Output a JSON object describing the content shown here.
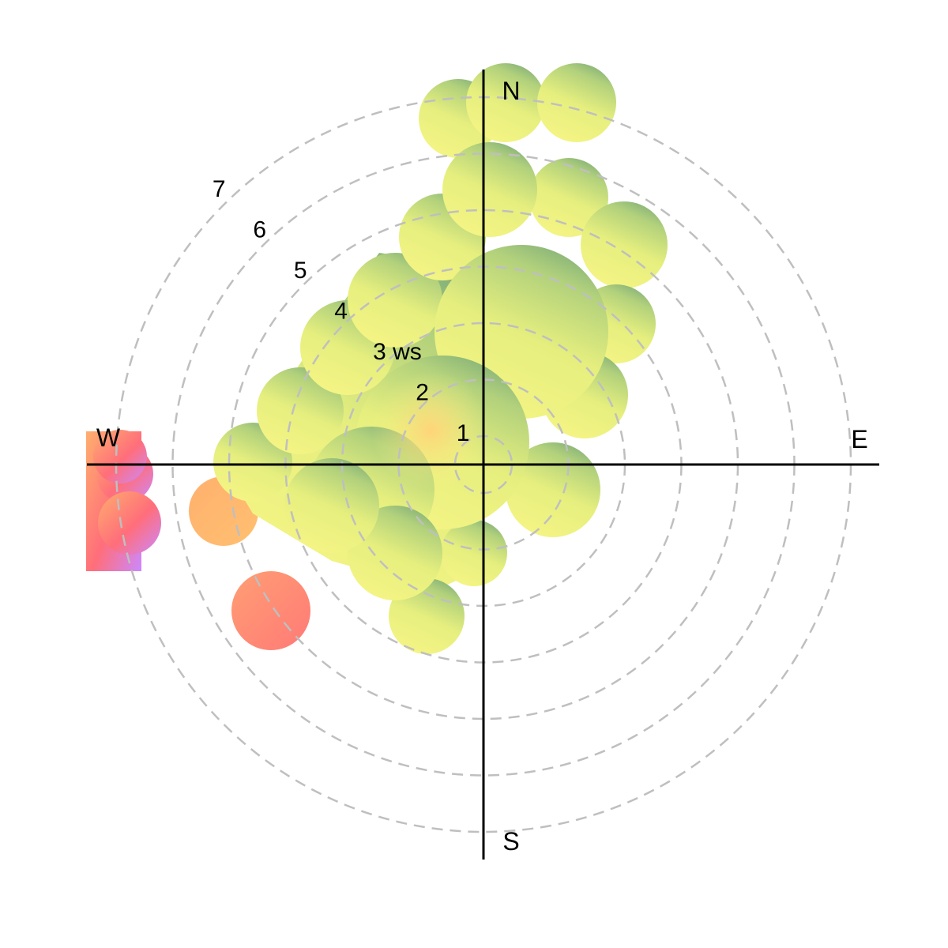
{
  "chart_data": {
    "type": "heatmap",
    "projection": "polar",
    "title": "",
    "radial_unit_label": "ws",
    "radial_ticks": [
      1,
      2,
      3,
      4,
      5,
      6,
      7
    ],
    "radial_tick_labels": [
      "1",
      "2",
      "3 ws",
      "4",
      "5",
      "6",
      "7"
    ],
    "directions": [
      "N",
      "E",
      "S",
      "W"
    ],
    "grid": true,
    "palette": [
      "#cc88ff",
      "#ff6e7a",
      "#ffb06e",
      "#f4f484",
      "#e6f07e",
      "#b4d27c",
      "#78aa78"
    ],
    "surface_samples": [
      {
        "angle": 0,
        "ws": 1.5,
        "level": 0.45
      },
      {
        "angle": 0,
        "ws": 4.5,
        "level": 0.35
      },
      {
        "angle": 0,
        "ws": 6.5,
        "level": 0.2
      },
      {
        "angle": 15,
        "ws": 6.7,
        "level": 0.05
      },
      {
        "angle": 20,
        "ws": 6.0,
        "level": 0.12
      },
      {
        "angle": 35,
        "ws": 4.0,
        "level": 0.3
      },
      {
        "angle": 45,
        "ws": 5.5,
        "level": 0.15
      },
      {
        "angle": 60,
        "ws": 3.5,
        "level": 0.25
      },
      {
        "angle": 80,
        "ws": 2.5,
        "level": 0.22
      },
      {
        "angle": 100,
        "ws": 1.5,
        "level": 0.35
      },
      {
        "angle": 120,
        "ws": 1.5,
        "level": 0.3
      },
      {
        "angle": 170,
        "ws": 1.8,
        "level": 0.45
      },
      {
        "angle": 200,
        "ws": 3.5,
        "level": 0.5
      },
      {
        "angle": 235,
        "ws": 5.0,
        "level": 0.72
      },
      {
        "angle": 253,
        "ws": 5.2,
        "level": 0.62
      },
      {
        "angle": 265,
        "ws": 4.6,
        "level": 0.5
      },
      {
        "angle": 270,
        "ws": 2.0,
        "level": 0.5
      },
      {
        "angle": 262,
        "ws": 6.5,
        "level": 0.9
      },
      {
        "angle": 280,
        "ws": 4.0,
        "level": 0.35
      },
      {
        "angle": 300,
        "ws": 3.5,
        "level": 0.25
      },
      {
        "angle": 315,
        "ws": 4.5,
        "level": 0.25
      },
      {
        "angle": 330,
        "ws": 2.2,
        "level": 0.6
      },
      {
        "angle": 340,
        "ws": 1.6,
        "level": 0.62
      },
      {
        "angle": 345,
        "ws": 5.5,
        "level": 0.3
      },
      {
        "angle": 355,
        "ws": 6.0,
        "level": 0.25
      }
    ]
  }
}
